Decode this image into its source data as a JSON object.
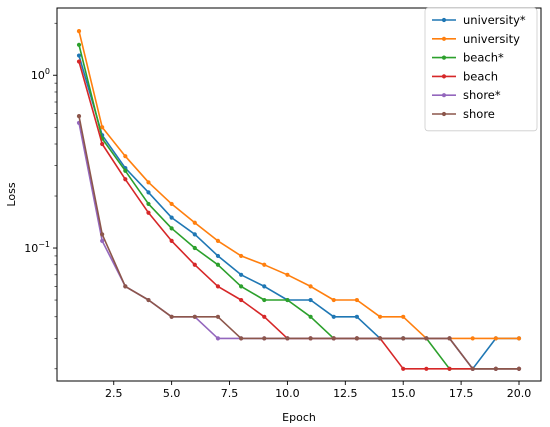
{
  "chart_data": {
    "type": "line",
    "title": "",
    "xlabel": "Epoch",
    "ylabel": "Loss",
    "xscale": "linear",
    "yscale": "log",
    "xlim": [
      0.05,
      20.95
    ],
    "ylim": [
      0.017,
      2.45
    ],
    "grid": false,
    "legend_position": "top-right",
    "x_ticks": [
      {
        "value": 2.5,
        "label": "2.5"
      },
      {
        "value": 5.0,
        "label": "5.0"
      },
      {
        "value": 7.5,
        "label": "7.5"
      },
      {
        "value": 10.0,
        "label": "10.0"
      },
      {
        "value": 12.5,
        "label": "12.5"
      },
      {
        "value": 15.0,
        "label": "15.0"
      },
      {
        "value": 17.5,
        "label": "17.5"
      },
      {
        "value": 20.0,
        "label": "20.0"
      }
    ],
    "y_ticks": [
      {
        "value": 1.0,
        "label": "10",
        "exp": "0"
      },
      {
        "value": 0.1,
        "label": "10",
        "exp": "−1"
      }
    ],
    "x": [
      1,
      2,
      3,
      4,
      5,
      6,
      7,
      8,
      9,
      10,
      11,
      12,
      13,
      14,
      15,
      16,
      17,
      18,
      19,
      20
    ],
    "series": [
      {
        "name": "university*",
        "color": "#1f77b4",
        "values": [
          1.3,
          0.45,
          0.29,
          0.21,
          0.15,
          0.12,
          0.09,
          0.07,
          0.06,
          0.05,
          0.05,
          0.04,
          0.04,
          0.03,
          0.03,
          0.03,
          0.03,
          0.02,
          0.03,
          0.03
        ]
      },
      {
        "name": "university",
        "color": "#ff7f0e",
        "values": [
          1.8,
          0.5,
          0.34,
          0.24,
          0.18,
          0.14,
          0.11,
          0.09,
          0.08,
          0.07,
          0.06,
          0.05,
          0.05,
          0.04,
          0.04,
          0.03,
          0.03,
          0.03,
          0.03,
          0.03
        ]
      },
      {
        "name": "beach*",
        "color": "#2ca02c",
        "values": [
          1.5,
          0.43,
          0.28,
          0.18,
          0.13,
          0.1,
          0.08,
          0.06,
          0.05,
          0.05,
          0.04,
          0.03,
          0.03,
          0.03,
          0.03,
          0.03,
          0.02,
          0.02,
          0.02,
          0.02
        ]
      },
      {
        "name": "beach",
        "color": "#d62728",
        "values": [
          1.2,
          0.4,
          0.25,
          0.16,
          0.11,
          0.08,
          0.06,
          0.05,
          0.04,
          0.03,
          0.03,
          0.03,
          0.03,
          0.03,
          0.02,
          0.02,
          0.02,
          0.02,
          0.02,
          0.02
        ]
      },
      {
        "name": "shore*",
        "color": "#9467bd",
        "values": [
          0.53,
          0.11,
          0.06,
          0.05,
          0.04,
          0.04,
          0.03,
          0.03,
          0.03,
          0.03,
          0.03,
          0.03,
          0.03,
          0.03,
          0.03,
          0.03,
          0.03,
          0.02,
          0.02,
          0.02
        ]
      },
      {
        "name": "shore",
        "color": "#8c564b",
        "values": [
          0.58,
          0.12,
          0.06,
          0.05,
          0.04,
          0.04,
          0.04,
          0.03,
          0.03,
          0.03,
          0.03,
          0.03,
          0.03,
          0.03,
          0.03,
          0.03,
          0.03,
          0.02,
          0.02,
          0.02
        ]
      }
    ]
  }
}
